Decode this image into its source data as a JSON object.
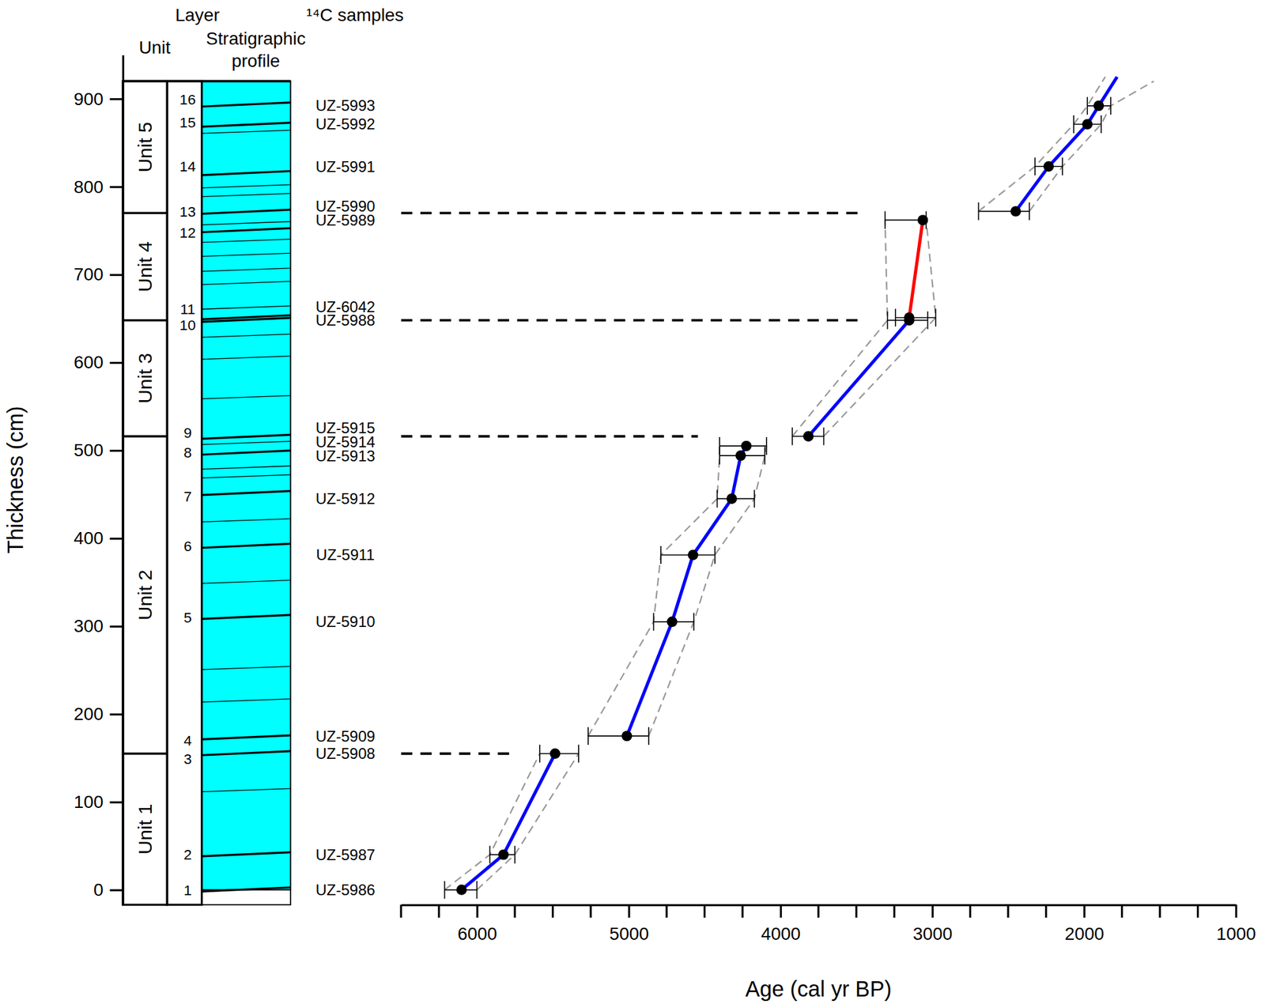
{
  "chart_data": {
    "type": "line",
    "x_label": "Age (cal yr BP)",
    "y_label": "Thickness (cm)",
    "xlim": [
      6500,
      1000
    ],
    "xticks": [
      6000,
      5000,
      4000,
      3000,
      2000,
      1000
    ],
    "xminor_ticks": [
      6500,
      6250,
      5750,
      5500,
      5250,
      4750,
      4500,
      4250,
      3750,
      3500,
      3250,
      2750,
      2500,
      2250,
      1750,
      1500,
      1250
    ],
    "ylim": [
      -17,
      950
    ],
    "yticks": [
      0,
      100,
      200,
      300,
      400,
      500,
      600,
      700,
      800,
      900
    ],
    "columns": {
      "unit": "Unit",
      "layer": "Layer",
      "profile": "Stratigraphic profile",
      "samples": "¹⁴C samples"
    },
    "units": [
      {
        "label": "Unit 1",
        "from": -17,
        "to": 155
      },
      {
        "label": "Unit 2",
        "from": 155,
        "to": 516
      },
      {
        "label": "Unit 3",
        "from": 516,
        "to": 648
      },
      {
        "label": "Unit 4",
        "from": 648,
        "to": 770
      },
      {
        "label": "Unit 5",
        "from": 770,
        "to": 920
      }
    ],
    "layers": [
      {
        "label": "1",
        "depth": 0
      },
      {
        "label": "2",
        "depth": 40
      },
      {
        "label": "3",
        "depth": 149
      },
      {
        "label": "4",
        "depth": 170
      },
      {
        "label": "5",
        "depth": 310
      },
      {
        "label": "6",
        "depth": 391
      },
      {
        "label": "7",
        "depth": 448
      },
      {
        "label": "8",
        "depth": 498
      },
      {
        "label": "9",
        "depth": 520
      },
      {
        "label": "10",
        "depth": 643
      },
      {
        "label": "11",
        "depth": 661
      },
      {
        "label": "12",
        "depth": 748
      },
      {
        "label": "13",
        "depth": 772
      },
      {
        "label": "14",
        "depth": 823
      },
      {
        "label": "15",
        "depth": 873
      },
      {
        "label": "16",
        "depth": 899
      }
    ],
    "profile": {
      "color": "#00ffff",
      "from": 0,
      "to": 920,
      "boundaries": [
        0,
        40,
        155,
        173,
        310,
        391,
        451,
        497,
        515,
        648,
        651,
        750,
        771,
        815,
        870,
        893
      ],
      "minor_lines": [
        113,
        215,
        252,
        350,
        420,
        470,
        480,
        508,
        560,
        605,
        630,
        662,
        690,
        705,
        722,
        738,
        758,
        790,
        800,
        862
      ]
    },
    "samples": {
      "color": "#000000",
      "marker": "circle",
      "names": [
        "UZ-5986",
        "UZ-5987",
        "UZ-5908",
        "UZ-5909",
        "UZ-5910",
        "UZ-5911",
        "UZ-5912",
        "UZ-5913",
        "UZ-5914",
        "UZ-5915",
        "UZ-5988",
        "UZ-6042",
        "UZ-5989",
        "UZ-5990",
        "UZ-5991",
        "UZ-5992",
        "UZ-5993"
      ],
      "x": [
        6101,
        5825,
        5485,
        5012,
        4714,
        4576,
        4321,
        4262,
        4225,
        3816,
        3152,
        3152,
        3062,
        2450,
        2233,
        1978,
        1903
      ],
      "y": [
        0,
        40,
        155,
        175,
        305,
        381,
        445,
        494,
        505,
        516,
        648,
        651,
        762,
        772,
        823,
        871,
        892
      ],
      "x_err_old": [
        6213,
        5915,
        5586,
        5267,
        4836,
        4788,
        4417,
        4401,
        4401,
        3922,
        3295,
        3242,
        3311,
        2695,
        2323,
        2068,
        1978
      ],
      "x_err_young": [
        6000,
        5750,
        5330,
        4868,
        4571,
        4432,
        4172,
        4103,
        4092,
        3715,
        3030,
        2977,
        3040,
        2360,
        2142,
        1887,
        1824
      ]
    },
    "series": [
      {
        "color": "#999999",
        "line_style": "dashed",
        "x": [
          6213,
          5915,
          5586,
          null,
          5267,
          4836,
          4788,
          4417,
          4401,
          4401,
          null,
          3922,
          3295,
          3311,
          null,
          2695,
          2323,
          2068,
          1978,
          1860
        ],
        "y": [
          0,
          40,
          155,
          null,
          175,
          305,
          381,
          445,
          494,
          505,
          null,
          516,
          648,
          762,
          null,
          772,
          823,
          871,
          892,
          925
        ]
      },
      {
        "color": "#999999",
        "line_style": "dashed",
        "x": [
          6000,
          5750,
          5330,
          null,
          4868,
          4571,
          4432,
          4172,
          4103,
          4092,
          null,
          3715,
          2977,
          3040,
          null,
          2360,
          2142,
          1887,
          1824,
          1540
        ],
        "y": [
          0,
          40,
          155,
          null,
          175,
          305,
          381,
          445,
          494,
          505,
          null,
          516,
          651,
          762,
          null,
          772,
          823,
          871,
          892,
          920
        ]
      },
      {
        "color": "#0000ff",
        "line_style": "solid",
        "x": [
          6101,
          5825,
          5485,
          null,
          5012,
          4714,
          4576,
          4321,
          4262,
          4225,
          null,
          3816,
          3152,
          null,
          2450,
          2233,
          1978,
          1903,
          1782
        ],
        "y": [
          0,
          40,
          155,
          null,
          175,
          305,
          381,
          445,
          494,
          505,
          null,
          516,
          648,
          null,
          772,
          823,
          871,
          892,
          925
        ]
      },
      {
        "color": "#ff0000",
        "line_style": "solid",
        "x": [
          3152,
          3062
        ],
        "y": [
          651,
          762
        ]
      }
    ],
    "boundary_lines": {
      "color": "#000000",
      "line_style": "dashed",
      "y": [
        770,
        648,
        516,
        155
      ],
      "x_end": [
        3440,
        3440,
        4544,
        5750
      ]
    }
  }
}
